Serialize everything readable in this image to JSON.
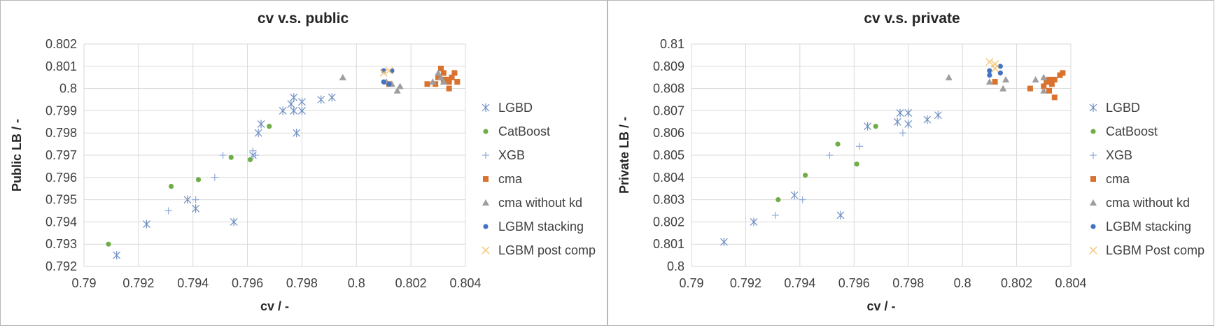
{
  "chart_data": [
    {
      "type": "scatter",
      "title": "cv v.s. public",
      "xlabel": "cv / -",
      "ylabel": "Public LB / -",
      "xlim": [
        0.79,
        0.804
      ],
      "ylim": [
        0.792,
        0.802
      ],
      "xticks": [
        "0.79",
        "0.792",
        "0.794",
        "0.796",
        "0.798",
        "0.8",
        "0.802",
        "0.804"
      ],
      "yticks": [
        "0.792",
        "0.793",
        "0.794",
        "0.795",
        "0.796",
        "0.797",
        "0.798",
        "0.799",
        "0.8",
        "0.801",
        "0.802"
      ],
      "grid": true,
      "legend_position": "right",
      "series": [
        {
          "name": "LGBD",
          "marker": "asterisk",
          "color": "#6f8fc2",
          "points": [
            [
              0.7912,
              0.7925
            ],
            [
              0.7923,
              0.7939
            ],
            [
              0.7938,
              0.795
            ],
            [
              0.7941,
              0.7946
            ],
            [
              0.7955,
              0.794
            ],
            [
              0.7962,
              0.797
            ],
            [
              0.7964,
              0.798
            ],
            [
              0.7965,
              0.7984
            ],
            [
              0.7973,
              0.799
            ],
            [
              0.7976,
              0.7993
            ],
            [
              0.7977,
              0.7996
            ],
            [
              0.7977,
              0.799
            ],
            [
              0.7978,
              0.798
            ],
            [
              0.798,
              0.799
            ],
            [
              0.798,
              0.7994
            ],
            [
              0.7987,
              0.7995
            ],
            [
              0.7991,
              0.7996
            ]
          ]
        },
        {
          "name": "CatBoost",
          "marker": "circle",
          "color": "#70ad47",
          "points": [
            [
              0.7909,
              0.793
            ],
            [
              0.7932,
              0.7956
            ],
            [
              0.7942,
              0.7959
            ],
            [
              0.7954,
              0.7969
            ],
            [
              0.7961,
              0.7968
            ],
            [
              0.7968,
              0.7983
            ]
          ]
        },
        {
          "name": "XGB",
          "marker": "plus",
          "color": "#8ea9db",
          "points": [
            [
              0.7931,
              0.7945
            ],
            [
              0.7941,
              0.795
            ],
            [
              0.7948,
              0.796
            ],
            [
              0.7951,
              0.797
            ],
            [
              0.7962,
              0.7972
            ],
            [
              0.7963,
              0.797
            ]
          ]
        },
        {
          "name": "cma",
          "marker": "square",
          "color": "#d9722e",
          "points": [
            [
              0.8012,
              0.8002
            ],
            [
              0.8026,
              0.8002
            ],
            [
              0.8029,
              0.8002
            ],
            [
              0.803,
              0.8005
            ],
            [
              0.8031,
              0.8009
            ],
            [
              0.8032,
              0.8004
            ],
            [
              0.8032,
              0.8007
            ],
            [
              0.8033,
              0.8004
            ],
            [
              0.8034,
              0.8
            ],
            [
              0.8034,
              0.8003
            ],
            [
              0.8035,
              0.8005
            ],
            [
              0.8036,
              0.8007
            ],
            [
              0.8037,
              0.8003
            ]
          ]
        },
        {
          "name": "cma without kd",
          "marker": "triangle",
          "color": "#9e9e9e",
          "points": [
            [
              0.7995,
              0.8005
            ],
            [
              0.8011,
              0.8003
            ],
            [
              0.8013,
              0.8002
            ],
            [
              0.8015,
              0.7999
            ],
            [
              0.8016,
              0.8001
            ],
            [
              0.8028,
              0.8003
            ],
            [
              0.803,
              0.8007
            ],
            [
              0.8031,
              0.8005
            ],
            [
              0.8032,
              0.8003
            ]
          ]
        },
        {
          "name": "LGBM stacking",
          "marker": "circle",
          "color": "#4472c4",
          "points": [
            [
              0.801,
              0.8008
            ],
            [
              0.8013,
              0.8008
            ],
            [
              0.801,
              0.8003
            ],
            [
              0.8012,
              0.8002
            ]
          ]
        },
        {
          "name": "LGBM post comp",
          "marker": "x",
          "color": "#f2c46f",
          "points": [
            [
              0.801,
              0.8007
            ],
            [
              0.8012,
              0.8008
            ]
          ]
        }
      ]
    },
    {
      "type": "scatter",
      "title": "cv v.s. private",
      "xlabel": "cv / -",
      "ylabel": "Private LB / -",
      "xlim": [
        0.79,
        0.804
      ],
      "ylim": [
        0.8,
        0.81
      ],
      "xticks": [
        "0.79",
        "0.792",
        "0.794",
        "0.796",
        "0.798",
        "0.8",
        "0.802",
        "0.804"
      ],
      "yticks": [
        "0.8",
        "0.801",
        "0.802",
        "0.803",
        "0.804",
        "0.805",
        "0.806",
        "0.807",
        "0.808",
        "0.809",
        "0.81"
      ],
      "grid": true,
      "legend_position": "right",
      "series": [
        {
          "name": "LGBD",
          "marker": "asterisk",
          "color": "#6f8fc2",
          "points": [
            [
              0.7912,
              0.8011
            ],
            [
              0.7923,
              0.802
            ],
            [
              0.7938,
              0.8032
            ],
            [
              0.7955,
              0.8023
            ],
            [
              0.7965,
              0.8063
            ],
            [
              0.7976,
              0.8065
            ],
            [
              0.7977,
              0.8069
            ],
            [
              0.798,
              0.8064
            ],
            [
              0.798,
              0.8069
            ],
            [
              0.7987,
              0.8066
            ],
            [
              0.7991,
              0.8068
            ]
          ]
        },
        {
          "name": "CatBoost",
          "marker": "circle",
          "color": "#70ad47",
          "points": [
            [
              0.7932,
              0.803
            ],
            [
              0.7942,
              0.8041
            ],
            [
              0.7954,
              0.8055
            ],
            [
              0.7961,
              0.8046
            ],
            [
              0.7968,
              0.8063
            ]
          ]
        },
        {
          "name": "XGB",
          "marker": "plus",
          "color": "#8ea9db",
          "points": [
            [
              0.7931,
              0.8023
            ],
            [
              0.7941,
              0.803
            ],
            [
              0.7951,
              0.805
            ],
            [
              0.7962,
              0.8054
            ],
            [
              0.7978,
              0.806
            ]
          ]
        },
        {
          "name": "cma",
          "marker": "square",
          "color": "#d9722e",
          "points": [
            [
              0.8012,
              0.8083
            ],
            [
              0.8025,
              0.808
            ],
            [
              0.803,
              0.8081
            ],
            [
              0.8031,
              0.8083
            ],
            [
              0.8032,
              0.8079
            ],
            [
              0.8032,
              0.8084
            ],
            [
              0.8033,
              0.8082
            ],
            [
              0.8034,
              0.8076
            ],
            [
              0.8034,
              0.8084
            ],
            [
              0.8036,
              0.8086
            ],
            [
              0.8037,
              0.8087
            ]
          ]
        },
        {
          "name": "cma without kd",
          "marker": "triangle",
          "color": "#9e9e9e",
          "points": [
            [
              0.7995,
              0.8085
            ],
            [
              0.801,
              0.8083
            ],
            [
              0.8015,
              0.808
            ],
            [
              0.8016,
              0.8084
            ],
            [
              0.8027,
              0.8084
            ],
            [
              0.803,
              0.8079
            ],
            [
              0.803,
              0.8085
            ]
          ]
        },
        {
          "name": "LGBM stacking",
          "marker": "circle",
          "color": "#4472c4",
          "points": [
            [
              0.801,
              0.8088
            ],
            [
              0.801,
              0.8086
            ],
            [
              0.8014,
              0.809
            ],
            [
              0.8014,
              0.8087
            ]
          ]
        },
        {
          "name": "LGBM Post comp",
          "marker": "x",
          "color": "#f2c46f",
          "points": [
            [
              0.801,
              0.8092
            ],
            [
              0.8012,
              0.8091
            ],
            [
              0.8012,
              0.8089
            ]
          ]
        }
      ]
    }
  ]
}
